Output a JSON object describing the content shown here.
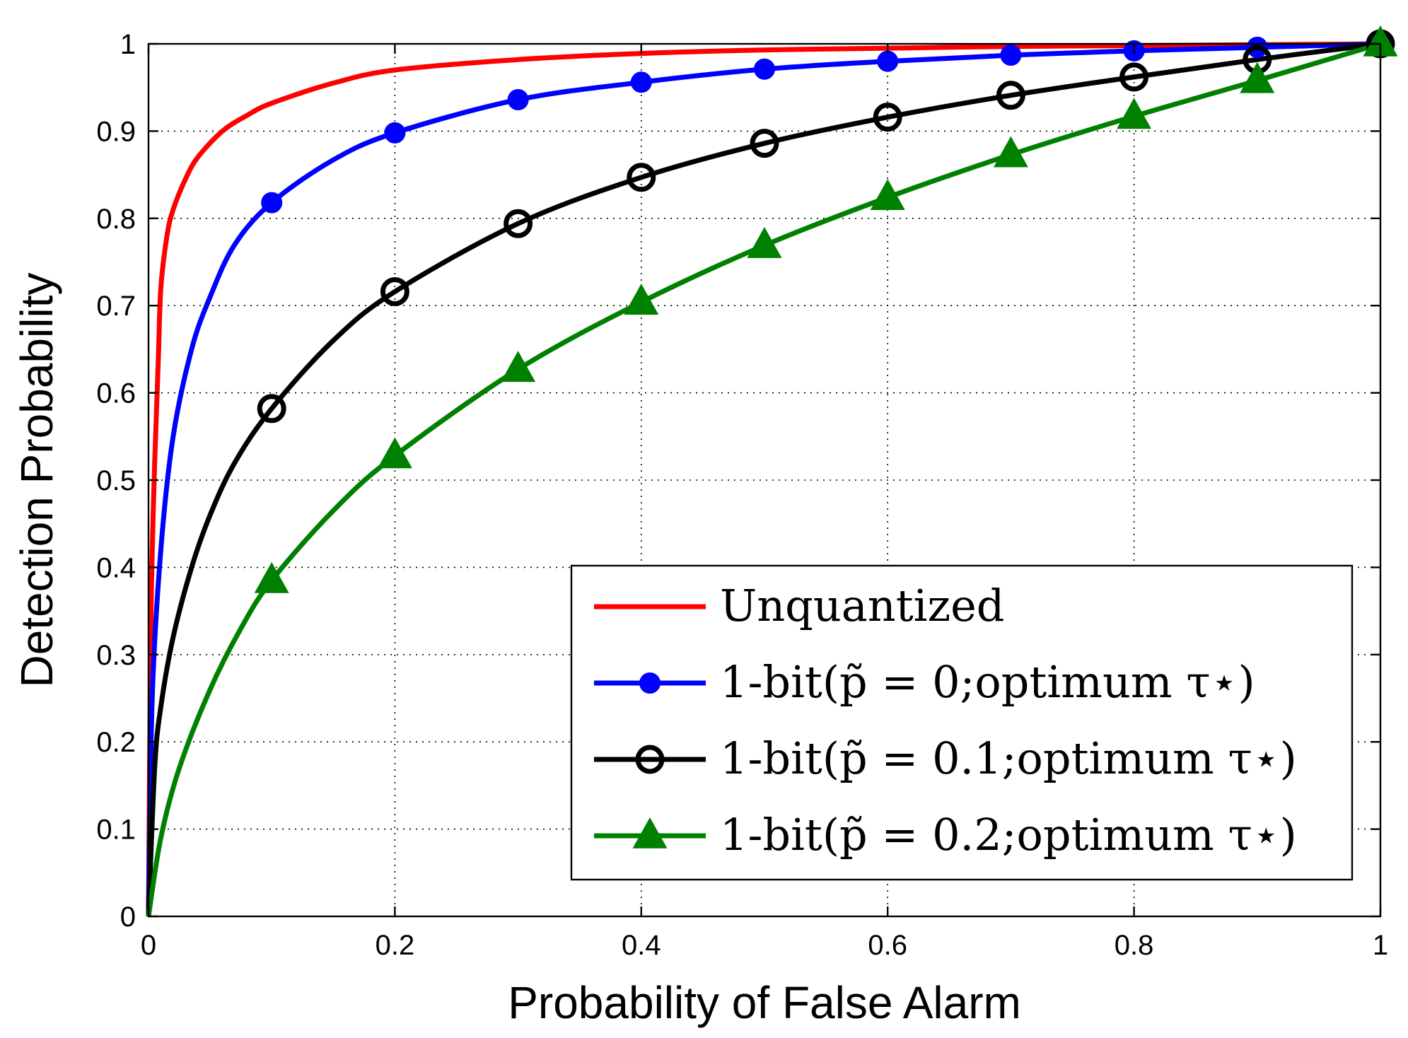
{
  "chart_data": {
    "type": "line",
    "title": "",
    "xlabel": "Probability of False Alarm",
    "ylabel": "Detection Probability",
    "xlim": [
      0,
      1
    ],
    "ylim": [
      0,
      1
    ],
    "xticks": [
      "0",
      "0.2",
      "0.4",
      "0.6",
      "0.8",
      "1"
    ],
    "yticks": [
      "0",
      "0.1",
      "0.2",
      "0.3",
      "0.4",
      "0.5",
      "0.6",
      "0.7",
      "0.8",
      "0.9",
      "1"
    ],
    "grid": true,
    "legend_position": "bottom-right",
    "series": [
      {
        "name": "Unquantized",
        "color": "#ff0000",
        "marker": "none",
        "x": [
          0,
          0.002,
          0.005,
          0.008,
          0.01,
          0.015,
          0.02,
          0.03,
          0.04,
          0.06,
          0.08,
          0.1,
          0.15,
          0.2,
          0.3,
          0.4,
          0.5,
          0.6,
          0.7,
          0.8,
          0.9,
          1.0
        ],
        "y": [
          0,
          0.34,
          0.52,
          0.64,
          0.72,
          0.78,
          0.81,
          0.845,
          0.87,
          0.9,
          0.918,
          0.932,
          0.955,
          0.97,
          0.982,
          0.989,
          0.993,
          0.995,
          0.997,
          0.998,
          0.999,
          1.0
        ]
      },
      {
        "name": "1-bit(p̃ = 0;optimum τ⋆)",
        "color": "#0000ff",
        "marker": "filled-circle",
        "x": [
          0,
          0.003,
          0.01,
          0.02,
          0.035,
          0.05,
          0.07,
          0.1,
          0.15,
          0.2,
          0.3,
          0.4,
          0.5,
          0.6,
          0.7,
          0.8,
          0.9,
          1.0
        ],
        "y": [
          0,
          0.25,
          0.42,
          0.55,
          0.65,
          0.71,
          0.77,
          0.818,
          0.867,
          0.898,
          0.936,
          0.956,
          0.971,
          0.98,
          0.987,
          0.992,
          0.996,
          1.0
        ],
        "markers_x": [
          0.1,
          0.2,
          0.3,
          0.4,
          0.5,
          0.6,
          0.7,
          0.8,
          0.9,
          1.0
        ]
      },
      {
        "name": "1-bit(p̃ = 0.1;optimum τ⋆)",
        "color": "#000000",
        "marker": "open-circle",
        "x": [
          0,
          0.005,
          0.01,
          0.02,
          0.035,
          0.05,
          0.07,
          0.1,
          0.15,
          0.2,
          0.3,
          0.4,
          0.5,
          0.6,
          0.7,
          0.8,
          0.9,
          1.0
        ],
        "y": [
          0,
          0.17,
          0.24,
          0.32,
          0.4,
          0.46,
          0.52,
          0.582,
          0.66,
          0.716,
          0.794,
          0.847,
          0.886,
          0.916,
          0.941,
          0.962,
          0.982,
          1.0
        ],
        "markers_x": [
          0.1,
          0.2,
          0.3,
          0.4,
          0.5,
          0.6,
          0.7,
          0.8,
          0.9,
          1.0
        ]
      },
      {
        "name": "1-bit(p̃ = 0.2;optimum τ⋆)",
        "color": "#008000",
        "marker": "filled-triangle",
        "x": [
          0,
          0.01,
          0.025,
          0.05,
          0.075,
          0.1,
          0.15,
          0.2,
          0.3,
          0.4,
          0.5,
          0.6,
          0.7,
          0.8,
          0.9,
          1.0
        ],
        "y": [
          0,
          0.09,
          0.17,
          0.26,
          0.33,
          0.385,
          0.465,
          0.528,
          0.627,
          0.704,
          0.769,
          0.824,
          0.873,
          0.917,
          0.958,
          1.0
        ],
        "markers_x": [
          0.1,
          0.2,
          0.3,
          0.4,
          0.5,
          0.6,
          0.7,
          0.8,
          0.9,
          1.0
        ]
      }
    ]
  }
}
